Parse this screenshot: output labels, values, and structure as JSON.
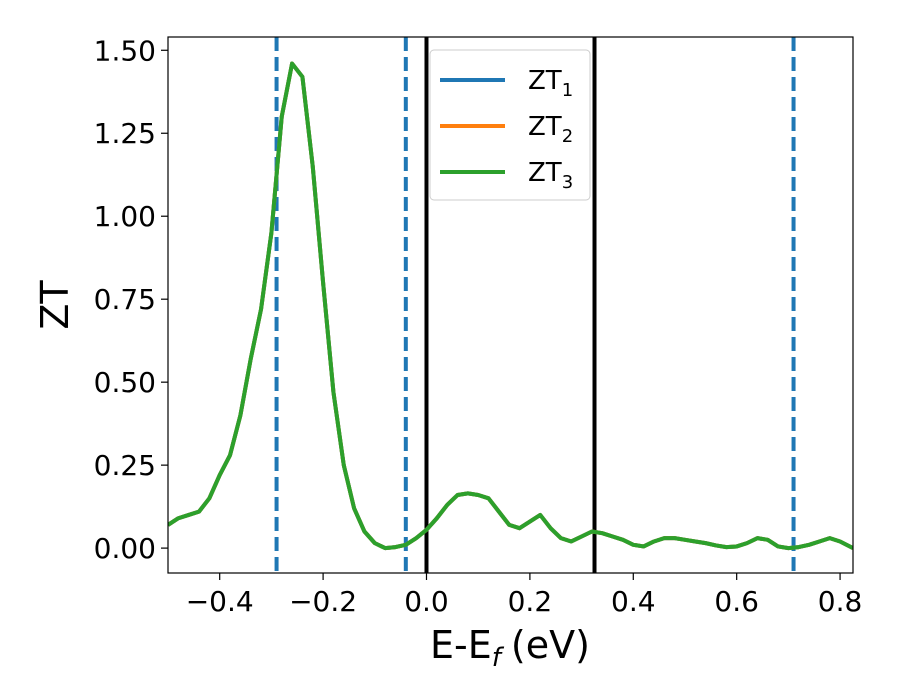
{
  "chart_data": {
    "type": "line",
    "title": "",
    "xlabel": "E-E",
    "xlabel_sub": "f",
    "xlabel_unit": "(eV)",
    "ylabel": "ZT",
    "xlim": [
      -0.5,
      0.825
    ],
    "ylim": [
      -0.075,
      1.54
    ],
    "grid": false,
    "legend_position": "top-center",
    "x_ticks": [
      {
        "value": -0.4,
        "label": "−0.4"
      },
      {
        "value": -0.2,
        "label": "−0.2"
      },
      {
        "value": 0.0,
        "label": "0.0"
      },
      {
        "value": 0.2,
        "label": "0.2"
      },
      {
        "value": 0.4,
        "label": "0.4"
      },
      {
        "value": 0.6,
        "label": "0.6"
      },
      {
        "value": 0.8,
        "label": "0.8"
      }
    ],
    "y_ticks": [
      {
        "value": 0.0,
        "label": "0.00"
      },
      {
        "value": 0.25,
        "label": "0.25"
      },
      {
        "value": 0.5,
        "label": "0.50"
      },
      {
        "value": 0.75,
        "label": "0.75"
      },
      {
        "value": 1.0,
        "label": "1.00"
      },
      {
        "value": 1.25,
        "label": "1.25"
      },
      {
        "value": 1.5,
        "label": "1.50"
      }
    ],
    "x": [
      -0.5,
      -0.48,
      -0.46,
      -0.44,
      -0.42,
      -0.4,
      -0.38,
      -0.36,
      -0.34,
      -0.32,
      -0.3,
      -0.28,
      -0.26,
      -0.24,
      -0.22,
      -0.2,
      -0.18,
      -0.16,
      -0.14,
      -0.12,
      -0.1,
      -0.08,
      -0.06,
      -0.04,
      -0.02,
      0.0,
      0.02,
      0.04,
      0.06,
      0.08,
      0.1,
      0.12,
      0.14,
      0.16,
      0.18,
      0.2,
      0.22,
      0.24,
      0.26,
      0.28,
      0.3,
      0.32,
      0.34,
      0.36,
      0.38,
      0.4,
      0.42,
      0.44,
      0.46,
      0.48,
      0.5,
      0.52,
      0.54,
      0.56,
      0.58,
      0.6,
      0.62,
      0.64,
      0.66,
      0.68,
      0.7,
      0.72,
      0.74,
      0.76,
      0.78,
      0.8,
      0.825
    ],
    "series": [
      {
        "name": "ZT",
        "name_sub": "1",
        "color": "#1f77b4",
        "values": [
          0.07,
          0.09,
          0.1,
          0.11,
          0.15,
          0.22,
          0.28,
          0.4,
          0.57,
          0.72,
          0.95,
          1.3,
          1.46,
          1.42,
          1.15,
          0.8,
          0.47,
          0.25,
          0.12,
          0.05,
          0.015,
          0.0,
          0.003,
          0.01,
          0.03,
          0.055,
          0.09,
          0.13,
          0.16,
          0.165,
          0.16,
          0.15,
          0.11,
          0.07,
          0.06,
          0.08,
          0.1,
          0.06,
          0.03,
          0.02,
          0.035,
          0.05,
          0.045,
          0.035,
          0.025,
          0.01,
          0.005,
          0.02,
          0.03,
          0.03,
          0.025,
          0.02,
          0.015,
          0.008,
          0.003,
          0.005,
          0.015,
          0.03,
          0.025,
          0.005,
          0.0,
          0.003,
          0.01,
          0.02,
          0.03,
          0.02,
          0.0
        ]
      },
      {
        "name": "ZT",
        "name_sub": "2",
        "color": "#ff7f0e",
        "values": [
          0.07,
          0.09,
          0.1,
          0.11,
          0.15,
          0.22,
          0.28,
          0.4,
          0.57,
          0.72,
          0.95,
          1.3,
          1.46,
          1.42,
          1.15,
          0.8,
          0.47,
          0.25,
          0.12,
          0.05,
          0.015,
          0.0,
          0.003,
          0.01,
          0.03,
          0.055,
          0.09,
          0.13,
          0.16,
          0.165,
          0.16,
          0.15,
          0.11,
          0.07,
          0.06,
          0.08,
          0.1,
          0.06,
          0.03,
          0.02,
          0.035,
          0.05,
          0.045,
          0.035,
          0.025,
          0.01,
          0.005,
          0.02,
          0.03,
          0.03,
          0.025,
          0.02,
          0.015,
          0.008,
          0.003,
          0.005,
          0.015,
          0.03,
          0.025,
          0.005,
          0.0,
          0.003,
          0.01,
          0.02,
          0.03,
          0.02,
          0.0
        ]
      },
      {
        "name": "ZT",
        "name_sub": "3",
        "color": "#2ca02c",
        "values": [
          0.07,
          0.09,
          0.1,
          0.11,
          0.15,
          0.22,
          0.28,
          0.4,
          0.57,
          0.72,
          0.95,
          1.3,
          1.46,
          1.42,
          1.15,
          0.8,
          0.47,
          0.25,
          0.12,
          0.05,
          0.015,
          0.0,
          0.003,
          0.01,
          0.03,
          0.055,
          0.09,
          0.13,
          0.16,
          0.165,
          0.16,
          0.15,
          0.11,
          0.07,
          0.06,
          0.08,
          0.1,
          0.06,
          0.03,
          0.02,
          0.035,
          0.05,
          0.045,
          0.035,
          0.025,
          0.01,
          0.005,
          0.02,
          0.03,
          0.03,
          0.025,
          0.02,
          0.015,
          0.008,
          0.003,
          0.005,
          0.015,
          0.03,
          0.025,
          0.005,
          0.0,
          0.003,
          0.01,
          0.02,
          0.03,
          0.02,
          0.0
        ]
      }
    ],
    "vertical_lines": [
      {
        "x": -0.29,
        "style": "dashed",
        "color": "#1f77b4"
      },
      {
        "x": -0.04,
        "style": "dashed",
        "color": "#1f77b4"
      },
      {
        "x": 0.0,
        "style": "solid",
        "color": "#000000"
      },
      {
        "x": 0.325,
        "style": "solid",
        "color": "#000000"
      },
      {
        "x": 0.71,
        "style": "dashed",
        "color": "#1f77b4"
      }
    ]
  }
}
